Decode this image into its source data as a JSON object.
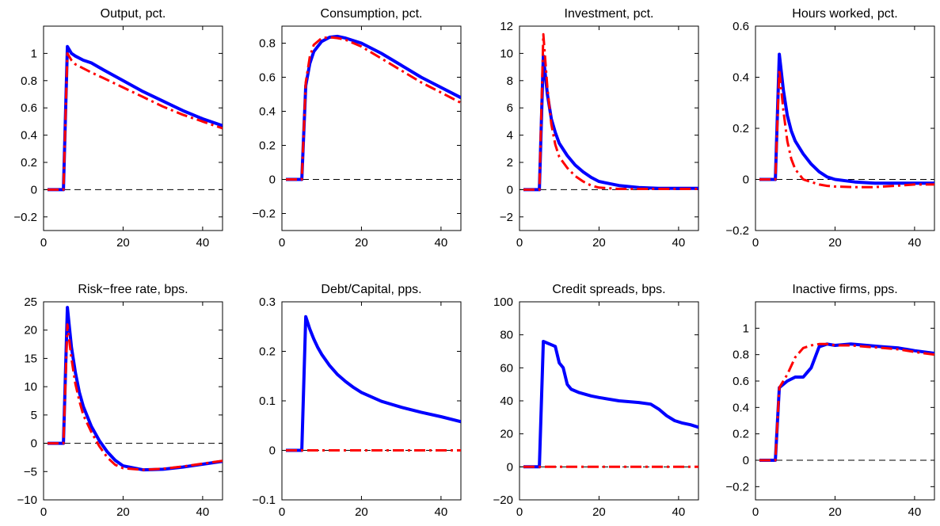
{
  "colors": {
    "solid": "#0000ff",
    "dashed": "#ff0000",
    "zero_line": "#000000"
  },
  "chart_data": [
    {
      "type": "line",
      "title": "Output, pct.",
      "xlim": [
        0,
        45
      ],
      "ylim": [
        -0.3,
        1.2
      ],
      "xticks": [
        0,
        20,
        40
      ],
      "yticks": [
        -0.2,
        0,
        0.2,
        0.4,
        0.6,
        0.8,
        1
      ],
      "ytick_labels": [
        "−0.2",
        "0",
        "0.2",
        "0.4",
        "0.6",
        "0.8",
        "1"
      ],
      "zero_line": true,
      "series": [
        {
          "style": "solid",
          "color": "#0000ff",
          "x": [
            1,
            5,
            6,
            7,
            8,
            10,
            12,
            15,
            20,
            25,
            30,
            35,
            40,
            45
          ],
          "y": [
            0,
            0,
            1.05,
            1.0,
            0.98,
            0.95,
            0.93,
            0.88,
            0.8,
            0.72,
            0.65,
            0.58,
            0.52,
            0.47
          ]
        },
        {
          "style": "dashed",
          "color": "#ff0000",
          "x": [
            1,
            5,
            6,
            7,
            8,
            10,
            12,
            15,
            20,
            25,
            30,
            35,
            40,
            45
          ],
          "y": [
            0,
            0,
            1.0,
            0.95,
            0.92,
            0.89,
            0.86,
            0.82,
            0.75,
            0.68,
            0.61,
            0.55,
            0.5,
            0.45
          ]
        }
      ]
    },
    {
      "type": "line",
      "title": "Consumption, pct.",
      "xlim": [
        0,
        45
      ],
      "ylim": [
        -0.3,
        0.9
      ],
      "xticks": [
        0,
        20,
        40
      ],
      "yticks": [
        -0.2,
        0,
        0.2,
        0.4,
        0.6,
        0.8
      ],
      "ytick_labels": [
        "−0.2",
        "0",
        "0.2",
        "0.4",
        "0.6",
        "0.8"
      ],
      "zero_line": true,
      "series": [
        {
          "style": "solid",
          "color": "#0000ff",
          "x": [
            1,
            5,
            6,
            7,
            8,
            10,
            12,
            14,
            16,
            20,
            25,
            30,
            35,
            40,
            45
          ],
          "y": [
            0,
            0,
            0.55,
            0.68,
            0.75,
            0.81,
            0.835,
            0.84,
            0.83,
            0.8,
            0.74,
            0.67,
            0.6,
            0.54,
            0.48
          ]
        },
        {
          "style": "dashed",
          "color": "#ff0000",
          "x": [
            1,
            5,
            6,
            7,
            8,
            10,
            12,
            14,
            16,
            20,
            25,
            30,
            35,
            40,
            45
          ],
          "y": [
            0,
            0,
            0.57,
            0.72,
            0.79,
            0.83,
            0.835,
            0.83,
            0.82,
            0.78,
            0.71,
            0.64,
            0.57,
            0.51,
            0.45
          ]
        }
      ]
    },
    {
      "type": "line",
      "title": "Investment, pct.",
      "xlim": [
        0,
        45
      ],
      "ylim": [
        -3,
        12
      ],
      "xticks": [
        0,
        20,
        40
      ],
      "yticks": [
        -2,
        0,
        2,
        4,
        6,
        8,
        10,
        12
      ],
      "ytick_labels": [
        "−2",
        "0",
        "2",
        "4",
        "6",
        "8",
        "10",
        "12"
      ],
      "zero_line": true,
      "series": [
        {
          "style": "solid",
          "color": "#0000ff",
          "x": [
            1,
            5,
            6,
            7,
            8,
            9,
            10,
            12,
            14,
            16,
            18,
            20,
            25,
            30,
            35,
            40,
            45
          ],
          "y": [
            0,
            0,
            9.8,
            7.0,
            5.2,
            4.2,
            3.4,
            2.5,
            1.8,
            1.3,
            0.9,
            0.6,
            0.3,
            0.15,
            0.1,
            0.1,
            0.1
          ]
        },
        {
          "style": "dashed",
          "color": "#ff0000",
          "x": [
            1,
            5,
            6,
            7,
            8,
            9,
            10,
            12,
            14,
            16,
            18,
            20,
            25,
            30,
            35,
            40,
            45
          ],
          "y": [
            0,
            0,
            11.4,
            7.5,
            4.8,
            3.3,
            2.4,
            1.6,
            1.0,
            0.6,
            0.3,
            0.15,
            0.05,
            0.05,
            0.05,
            0.05,
            0.05
          ]
        }
      ]
    },
    {
      "type": "line",
      "title": "Hours worked, pct.",
      "xlim": [
        0,
        45
      ],
      "ylim": [
        -0.2,
        0.6
      ],
      "xticks": [
        0,
        20,
        40
      ],
      "yticks": [
        -0.2,
        0,
        0.2,
        0.4,
        0.6
      ],
      "ytick_labels": [
        "−0.2",
        "0",
        "0.2",
        "0.4",
        "0.6"
      ],
      "zero_line": true,
      "series": [
        {
          "style": "solid",
          "color": "#0000ff",
          "x": [
            1,
            5,
            6,
            7,
            8,
            9,
            10,
            12,
            14,
            16,
            18,
            20,
            25,
            30,
            35,
            40,
            45
          ],
          "y": [
            0,
            0,
            0.49,
            0.35,
            0.25,
            0.19,
            0.15,
            0.1,
            0.06,
            0.03,
            0.01,
            0.0,
            -0.01,
            -0.015,
            -0.015,
            -0.015,
            -0.015
          ]
        },
        {
          "style": "dashed",
          "color": "#ff0000",
          "x": [
            1,
            5,
            6,
            7,
            8,
            9,
            10,
            12,
            14,
            16,
            18,
            20,
            25,
            30,
            35,
            40,
            45
          ],
          "y": [
            0,
            0,
            0.43,
            0.27,
            0.15,
            0.08,
            0.04,
            0.0,
            -0.01,
            -0.02,
            -0.025,
            -0.028,
            -0.03,
            -0.03,
            -0.025,
            -0.02,
            -0.02
          ]
        }
      ]
    },
    {
      "type": "line",
      "title": "Risk−free rate, bps.",
      "xlim": [
        0,
        45
      ],
      "ylim": [
        -10,
        25
      ],
      "xticks": [
        0,
        20,
        40
      ],
      "yticks": [
        -10,
        -5,
        0,
        5,
        10,
        15,
        20,
        25
      ],
      "ytick_labels": [
        "−10",
        "−5",
        "0",
        "5",
        "10",
        "15",
        "20",
        "25"
      ],
      "zero_line": true,
      "series": [
        {
          "style": "solid",
          "color": "#0000ff",
          "x": [
            1,
            5,
            6,
            7,
            8,
            9,
            10,
            12,
            14,
            16,
            18,
            20,
            25,
            30,
            35,
            40,
            45
          ],
          "y": [
            0,
            0,
            24,
            17,
            12.5,
            9,
            6.5,
            3,
            0.5,
            -1.5,
            -3,
            -4,
            -4.7,
            -4.6,
            -4.2,
            -3.7,
            -3.2
          ]
        },
        {
          "style": "dashed",
          "color": "#ff0000",
          "x": [
            1,
            5,
            6,
            7,
            8,
            9,
            10,
            12,
            14,
            16,
            18,
            20,
            25,
            30,
            35,
            40,
            45
          ],
          "y": [
            0,
            0,
            21,
            15,
            10.5,
            7.5,
            5,
            2,
            -0.5,
            -2.5,
            -3.8,
            -4.4,
            -4.7,
            -4.5,
            -4.1,
            -3.6,
            -3.1
          ]
        }
      ]
    },
    {
      "type": "line",
      "title": "Debt/Capital, pps.",
      "xlim": [
        0,
        45
      ],
      "ylim": [
        -0.1,
        0.3
      ],
      "xticks": [
        0,
        20,
        40
      ],
      "yticks": [
        -0.1,
        0,
        0.1,
        0.2,
        0.3
      ],
      "ytick_labels": [
        "−0.1",
        "0",
        "0.1",
        "0.2",
        "0.3"
      ],
      "zero_line": true,
      "series": [
        {
          "style": "solid",
          "color": "#0000ff",
          "x": [
            1,
            5,
            6,
            7,
            8,
            9,
            10,
            12,
            14,
            16,
            18,
            20,
            25,
            30,
            35,
            40,
            45
          ],
          "y": [
            0,
            0,
            0.27,
            0.245,
            0.225,
            0.208,
            0.194,
            0.171,
            0.153,
            0.139,
            0.127,
            0.117,
            0.099,
            0.087,
            0.077,
            0.068,
            0.058
          ]
        },
        {
          "style": "dashed",
          "color": "#ff0000",
          "x": [
            1,
            45
          ],
          "y": [
            0,
            0
          ]
        }
      ]
    },
    {
      "type": "line",
      "title": "Credit spreads, bps.",
      "xlim": [
        0,
        45
      ],
      "ylim": [
        -20,
        100
      ],
      "xticks": [
        0,
        20,
        40
      ],
      "yticks": [
        -20,
        0,
        20,
        40,
        60,
        80,
        100
      ],
      "ytick_labels": [
        "−20",
        "0",
        "20",
        "40",
        "60",
        "80",
        "100"
      ],
      "zero_line": true,
      "series": [
        {
          "style": "solid",
          "color": "#0000ff",
          "x": [
            1,
            5,
            6,
            8,
            9,
            10,
            11,
            12,
            13,
            15,
            18,
            20,
            25,
            30,
            33,
            35,
            37,
            39,
            41,
            43,
            45
          ],
          "y": [
            0,
            0,
            76,
            74,
            73,
            63,
            60,
            50,
            47,
            45,
            43,
            42,
            40,
            39,
            38,
            35,
            31,
            28,
            26.5,
            25.5,
            24
          ]
        },
        {
          "style": "dashed",
          "color": "#ff0000",
          "x": [
            1,
            45
          ],
          "y": [
            0,
            0
          ]
        }
      ]
    },
    {
      "type": "line",
      "title": "Inactive firms, pps.",
      "xlim": [
        0,
        45
      ],
      "ylim": [
        -0.3,
        1.2
      ],
      "xticks": [
        0,
        20,
        40
      ],
      "yticks": [
        -0.2,
        0,
        0.2,
        0.4,
        0.6,
        0.8,
        1
      ],
      "ytick_labels": [
        "−0.2",
        "0",
        "0.2",
        "0.4",
        "0.6",
        "0.8",
        "1"
      ],
      "zero_line": true,
      "series": [
        {
          "style": "solid",
          "color": "#0000ff",
          "x": [
            1,
            5,
            6,
            8,
            10,
            12,
            14,
            16,
            18,
            20,
            24,
            28,
            32,
            36,
            40,
            45
          ],
          "y": [
            0,
            0,
            0.55,
            0.6,
            0.63,
            0.63,
            0.7,
            0.86,
            0.88,
            0.87,
            0.88,
            0.87,
            0.86,
            0.85,
            0.83,
            0.81
          ]
        },
        {
          "style": "dashed",
          "color": "#ff0000",
          "x": [
            1,
            5,
            6,
            8,
            10,
            12,
            14,
            16,
            18,
            20,
            24,
            28,
            32,
            36,
            40,
            45
          ],
          "y": [
            0,
            0,
            0.55,
            0.65,
            0.78,
            0.85,
            0.87,
            0.88,
            0.88,
            0.87,
            0.87,
            0.86,
            0.85,
            0.84,
            0.82,
            0.8
          ]
        }
      ]
    }
  ]
}
